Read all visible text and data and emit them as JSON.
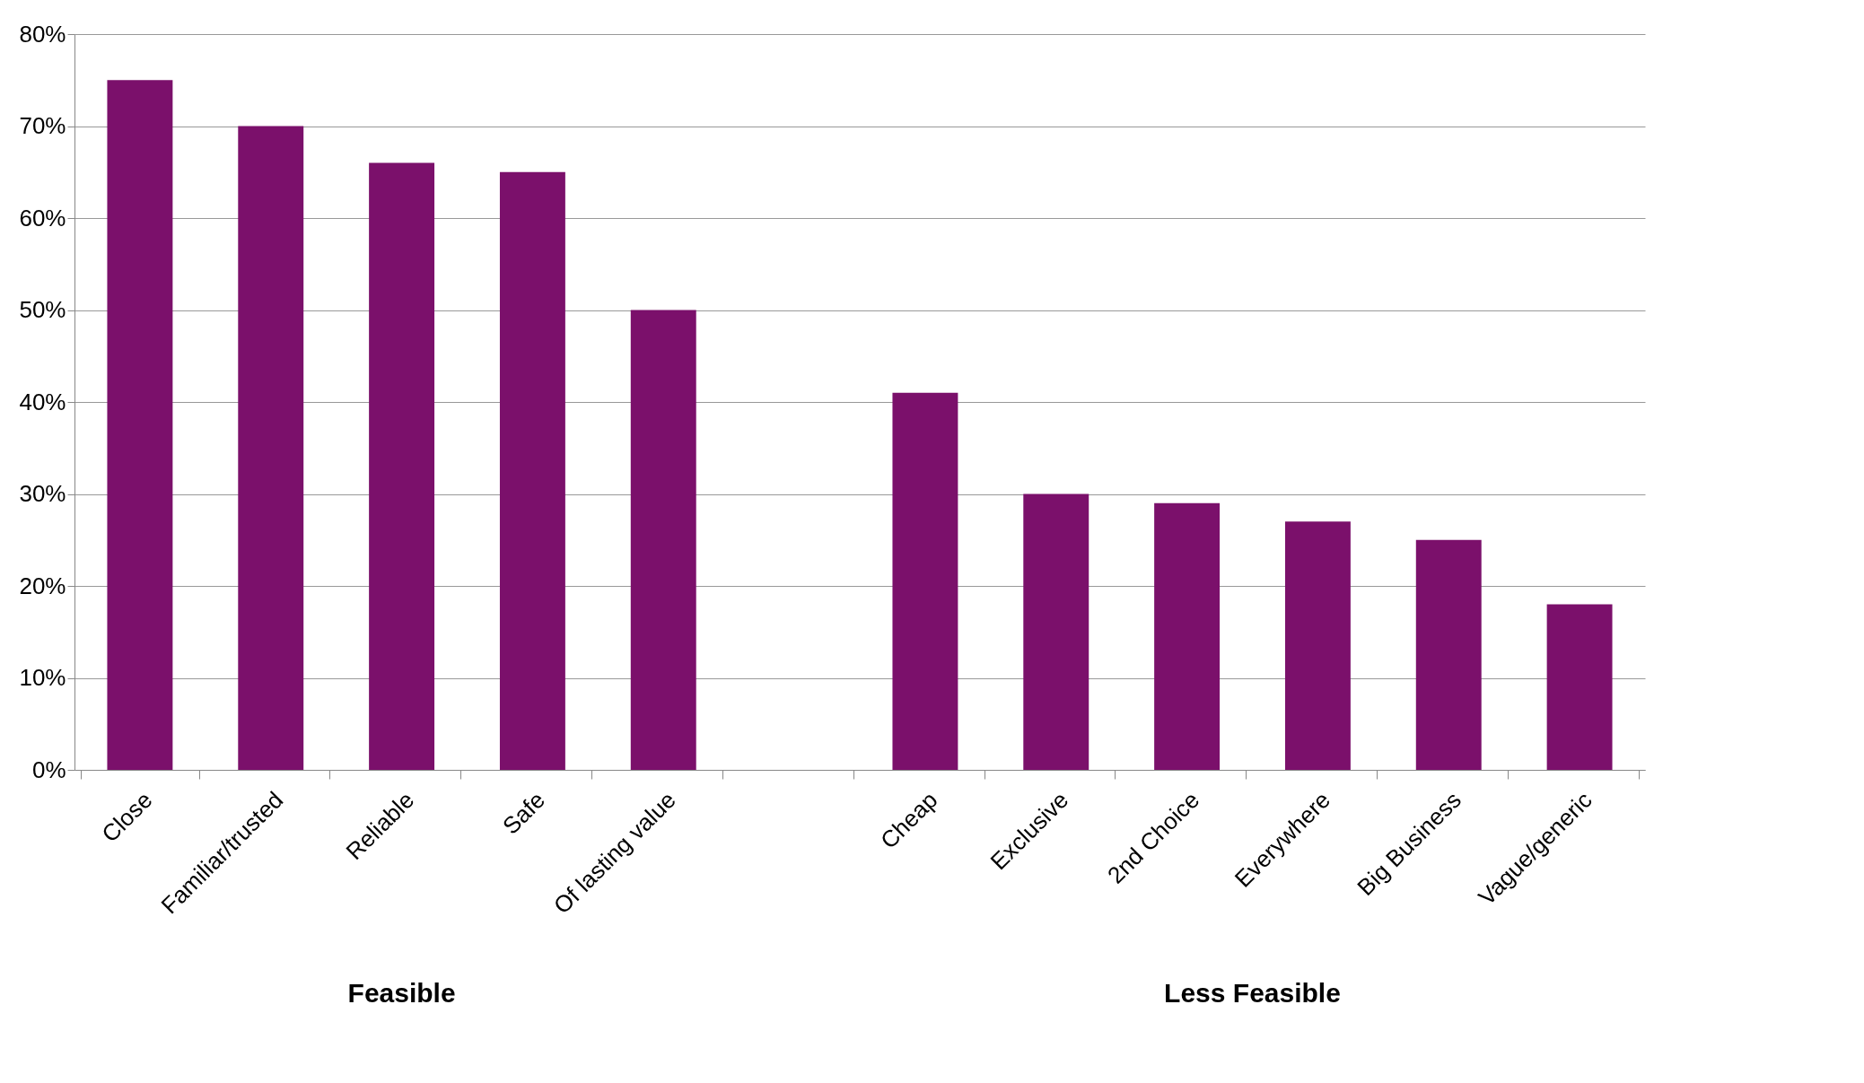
{
  "chart_data": {
    "type": "bar",
    "categories": [
      "Close",
      "Familiar/trusted",
      "Reliable",
      "Safe",
      "Of lasting value",
      null,
      "Cheap",
      "Exclusive",
      "2nd Choice",
      "Everywhere",
      "Big Business",
      "Vague/generic"
    ],
    "values": [
      75,
      70,
      66,
      65,
      50,
      null,
      41,
      30,
      29,
      27,
      25,
      18
    ],
    "color": "#7b106b",
    "ylim": [
      0,
      80
    ],
    "yticks": [
      {
        "value": 0,
        "label": "0%"
      },
      {
        "value": 10,
        "label": "10%"
      },
      {
        "value": 20,
        "label": "20%"
      },
      {
        "value": 30,
        "label": "30%"
      },
      {
        "value": 40,
        "label": "40%"
      },
      {
        "value": 50,
        "label": "50%"
      },
      {
        "value": 60,
        "label": "60%"
      },
      {
        "value": 70,
        "label": "70%"
      },
      {
        "value": 80,
        "label": "80%"
      }
    ],
    "grid": "y",
    "annotations": [
      "Feasible",
      "Less Feasible"
    ]
  }
}
